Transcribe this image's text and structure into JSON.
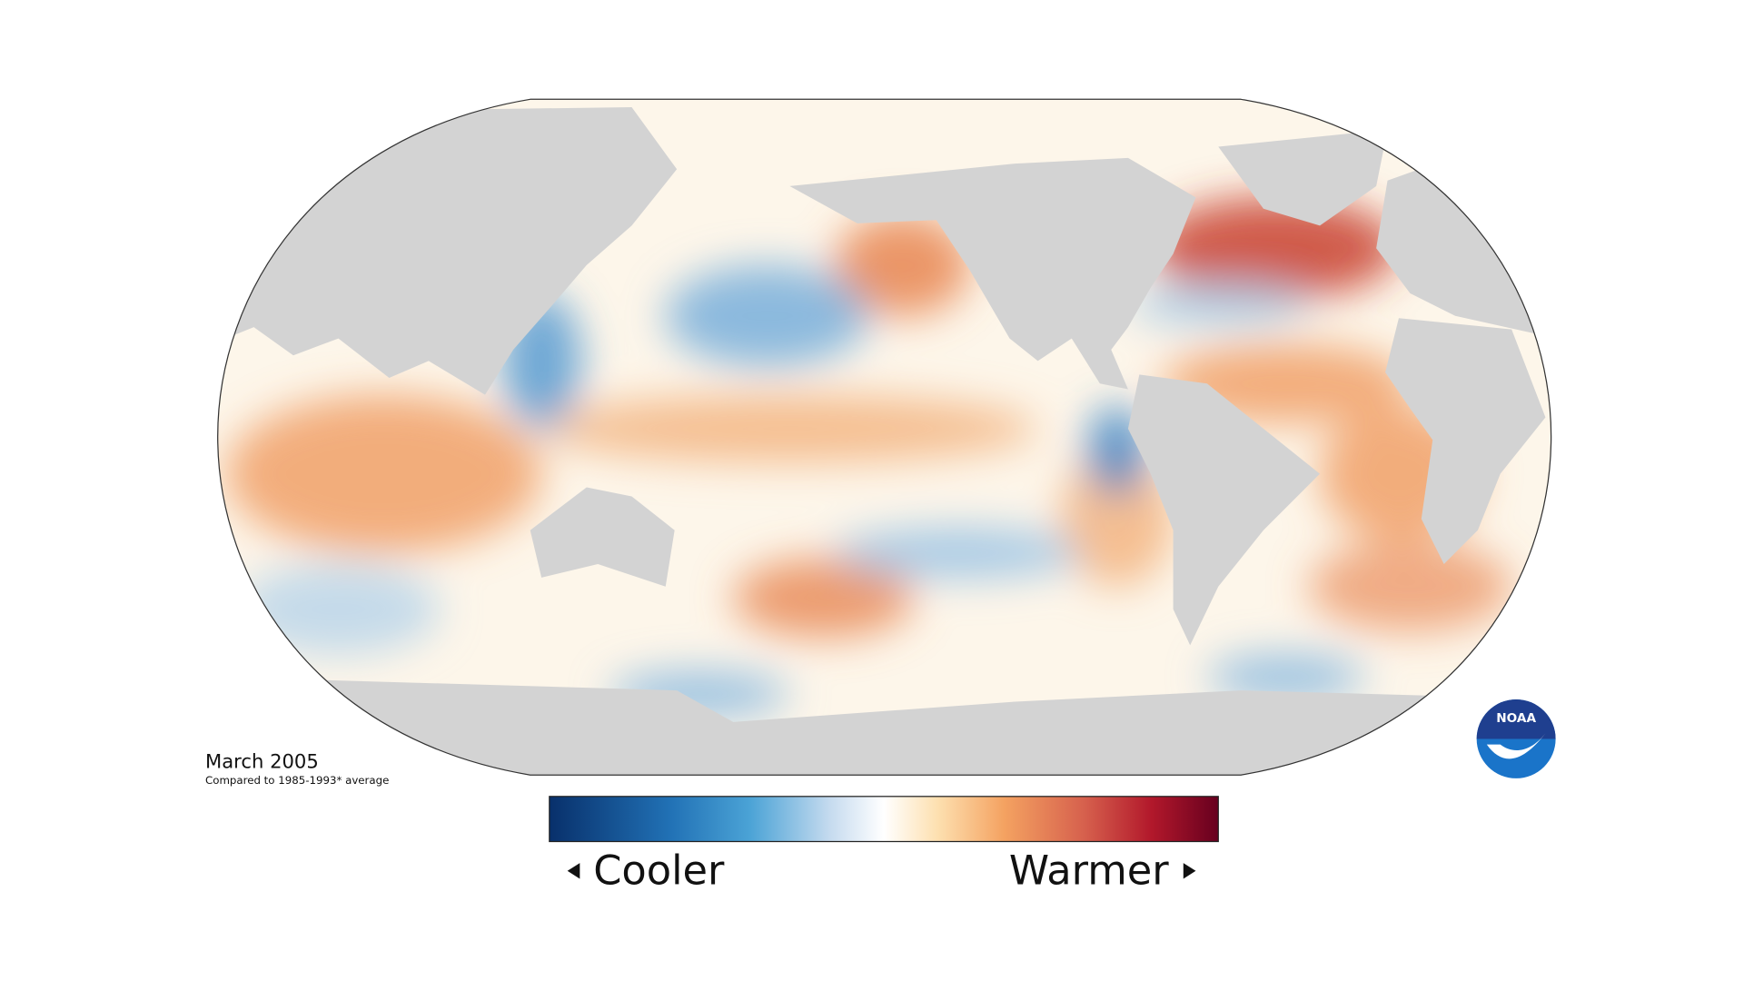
{
  "map": {
    "date": "March 2005",
    "baseline": "Compared to 1985-1993* average",
    "legend": {
      "low": "Cooler",
      "high": "Warmer"
    }
  },
  "logo": {
    "text": "NOAA"
  }
}
